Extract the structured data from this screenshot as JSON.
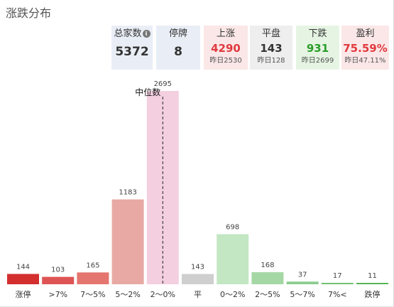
{
  "panel": {
    "title": "涨跌分布"
  },
  "stats": {
    "total": {
      "label": "总家数",
      "value": "5372",
      "icon": "info-icon"
    },
    "halt": {
      "label": "停牌",
      "value": "8"
    },
    "up": {
      "label": "上涨",
      "value": "4290",
      "prev": "昨日2530"
    },
    "flat": {
      "label": "平盘",
      "value": "143",
      "prev": "昨日128"
    },
    "down": {
      "label": "下跌",
      "value": "931",
      "prev": "昨日2699"
    },
    "profit": {
      "label": "盈利",
      "value": "75.59%",
      "prev": "昨日47.11%"
    }
  },
  "colors": {
    "up": "#e0393e",
    "down": "#2a9d2a",
    "bars": [
      "#d32f2f",
      "#de5454",
      "#e5756f",
      "#e8a9a4",
      "#f3cfe0",
      "#cfcfcf",
      "#c3e6c3",
      "#a5d7a5",
      "#8ccc8c",
      "#72c172",
      "#57b657"
    ]
  },
  "chart_data": {
    "type": "bar",
    "categories": [
      "涨停",
      ">7%",
      "7～5%",
      "5～2%",
      "2～0%",
      "平",
      "0～2%",
      "2～5%",
      "5～7%",
      "7%<",
      "跌停"
    ],
    "values": [
      144,
      103,
      165,
      1183,
      2695,
      143,
      698,
      168,
      37,
      17,
      11
    ],
    "median_label": "中位数",
    "median_category": "2～0%",
    "ylim": [
      0,
      2695
    ]
  }
}
